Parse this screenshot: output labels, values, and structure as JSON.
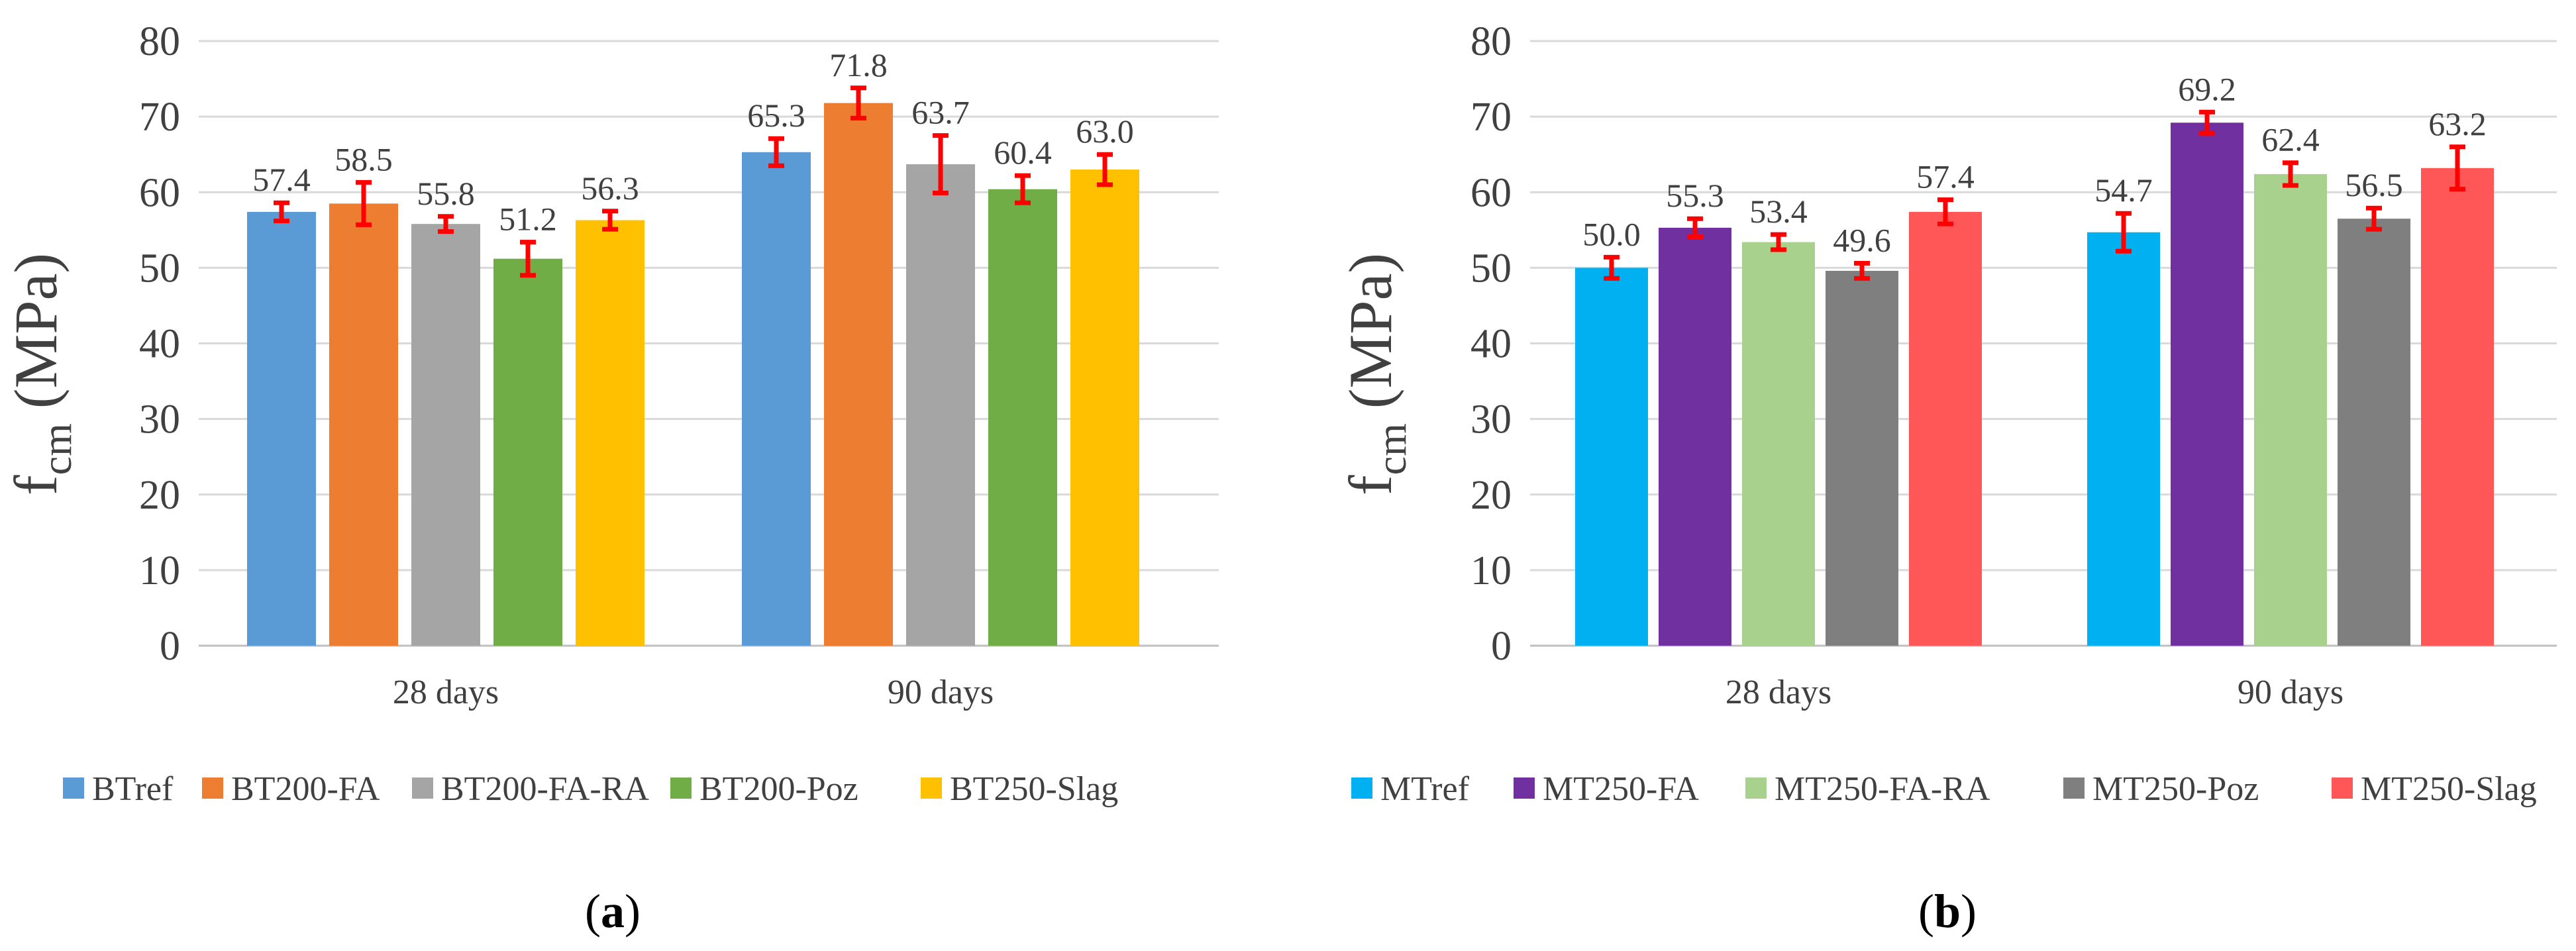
{
  "chart_data": [
    {
      "type": "bar",
      "panel_label": "(a)",
      "panel_letter": "a",
      "ylabel_main": "f",
      "ylabel_sub": "cm",
      "ylabel_unit": "(MPa)",
      "ylim": [
        0,
        80
      ],
      "yticks": [
        0,
        10,
        20,
        30,
        40,
        50,
        60,
        70,
        80
      ],
      "grid": true,
      "legend_position": "bottom",
      "categories": [
        "28 days",
        "90 days"
      ],
      "series": [
        {
          "name": "BTref",
          "color": "#5B9BD5",
          "values": [
            57.4,
            65.3
          ],
          "labels": [
            "57.4",
            "65.3"
          ],
          "errors": [
            1.2,
            1.8
          ]
        },
        {
          "name": "BT200-FA",
          "color": "#ED7D31",
          "values": [
            58.5,
            71.8
          ],
          "labels": [
            "58.5",
            "71.8"
          ],
          "errors": [
            2.8,
            2.0
          ]
        },
        {
          "name": "BT200-FA-RA",
          "color": "#A5A5A5",
          "values": [
            55.8,
            63.7
          ],
          "labels": [
            "55.8",
            "63.7"
          ],
          "errors": [
            1.0,
            3.8
          ]
        },
        {
          "name": "BT200-Poz",
          "color": "#70AD47",
          "values": [
            51.2,
            60.4
          ],
          "labels": [
            "51.2",
            "60.4"
          ],
          "errors": [
            2.2,
            1.8
          ]
        },
        {
          "name": "BT250-Slag",
          "color": "#FFC000",
          "values": [
            56.3,
            63.0
          ],
          "labels": [
            "56.3",
            "63.0"
          ],
          "errors": [
            1.2,
            2.0
          ]
        }
      ]
    },
    {
      "type": "bar",
      "panel_label": "(b)",
      "panel_letter": "b",
      "ylabel_main": "f",
      "ylabel_sub": "cm",
      "ylabel_unit": "(MPa)",
      "ylim": [
        0,
        80
      ],
      "yticks": [
        0,
        10,
        20,
        30,
        40,
        50,
        60,
        70,
        80
      ],
      "grid": true,
      "legend_position": "bottom",
      "categories": [
        "28 days",
        "90 days"
      ],
      "series": [
        {
          "name": "MTref",
          "color": "#00B0F0",
          "values": [
            50.0,
            54.7
          ],
          "labels": [
            "50.0",
            "54.7"
          ],
          "errors": [
            1.4,
            2.5
          ]
        },
        {
          "name": "MT250-FA",
          "color": "#7030A0",
          "values": [
            55.3,
            69.2
          ],
          "labels": [
            "55.3",
            "69.2"
          ],
          "errors": [
            1.2,
            1.4
          ]
        },
        {
          "name": "MT250-FA-RA",
          "color": "#A9D18E",
          "values": [
            53.4,
            62.4
          ],
          "labels": [
            "53.4",
            "62.4"
          ],
          "errors": [
            1.0,
            1.5
          ]
        },
        {
          "name": "MT250-Poz",
          "color": "#7F7F7F",
          "values": [
            49.6,
            56.5
          ],
          "labels": [
            "49.6",
            "56.5"
          ],
          "errors": [
            1.0,
            1.4
          ]
        },
        {
          "name": "MT250-Slag",
          "color": "#FF5757",
          "values": [
            57.4,
            63.2
          ],
          "labels": [
            "57.4",
            "63.2"
          ],
          "errors": [
            1.6,
            2.8
          ]
        }
      ]
    }
  ]
}
